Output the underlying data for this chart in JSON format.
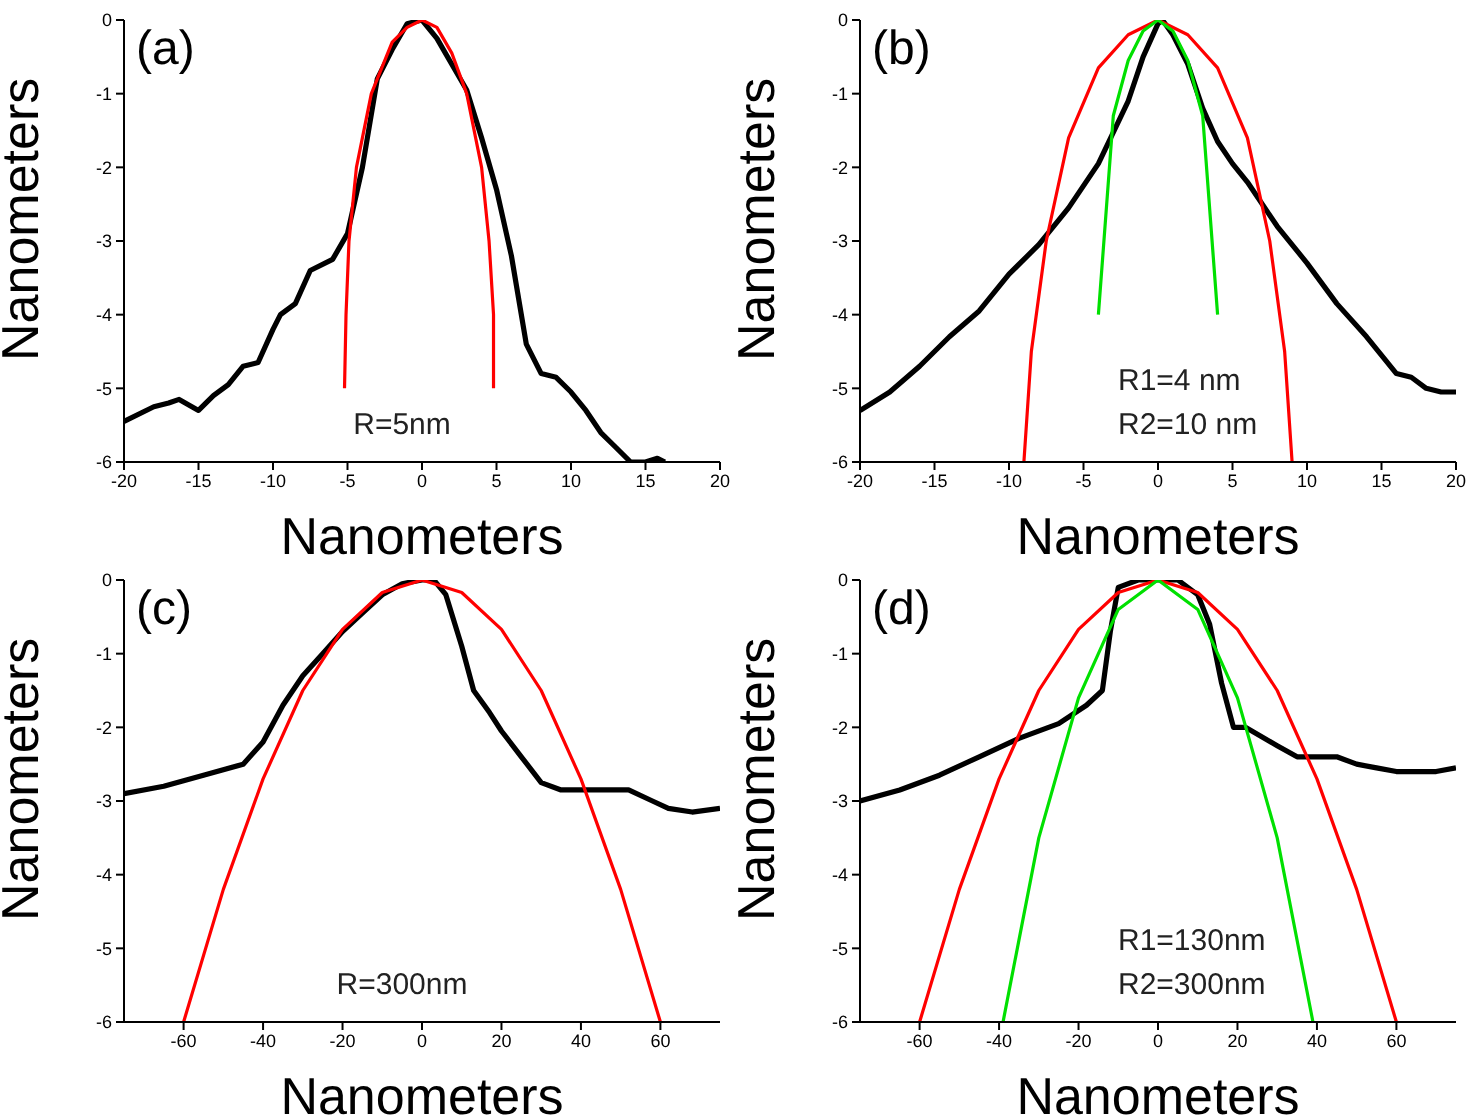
{
  "chart_data": [
    {
      "type": "line",
      "title": "(a)",
      "xlabel": "Nanometers",
      "ylabel": "Nanometers",
      "xlim": [
        -20,
        20
      ],
      "ylim": [
        -6,
        0
      ],
      "xticks": [
        -20,
        -15,
        -10,
        -5,
        0,
        5,
        10,
        15,
        20
      ],
      "yticks": [
        -6,
        -5,
        -4,
        -3,
        -2,
        -1,
        0
      ],
      "grid": false,
      "legend": false,
      "marker": "none",
      "line_style": "solid",
      "annotations": [
        "R=5nm"
      ],
      "series": [
        {
          "color": "#000000",
          "x": [
            -20,
            -18,
            -17,
            -16.3,
            -15,
            -14,
            -13,
            -12,
            -11,
            -10,
            -9.5,
            -8.5,
            -7.5,
            -6,
            -5,
            -4,
            -3,
            -2,
            -1,
            0,
            1,
            2,
            3,
            4,
            5,
            6,
            7,
            8,
            9,
            10,
            11,
            12,
            13,
            14,
            15,
            15.8,
            16.3
          ],
          "values": [
            -5.45,
            -5.25,
            -5.2,
            -5.15,
            -5.3,
            -5.1,
            -4.95,
            -4.7,
            -4.65,
            -4.2,
            -4,
            -3.85,
            -3.4,
            -3.25,
            -2.9,
            -2,
            -0.8,
            -0.4,
            -0.05,
            0,
            -0.25,
            -0.6,
            -0.95,
            -1.6,
            -2.3,
            -3.2,
            -4.4,
            -4.8,
            -4.85,
            -5.05,
            -5.3,
            -5.6,
            -5.8,
            -6,
            -6,
            -5.95,
            -6
          ]
        },
        {
          "color": "#ff0000",
          "x": [
            -5.2,
            -5.1,
            -4.9,
            -4.4,
            -3.4,
            -2,
            -1,
            0,
            1,
            2,
            3,
            4,
            4.5,
            4.8,
            4.8
          ],
          "values": [
            -5,
            -4,
            -3,
            -2,
            -1,
            -0.3,
            -0.1,
            0,
            -0.1,
            -0.45,
            -1,
            -2,
            -3,
            -4,
            -5
          ]
        }
      ]
    },
    {
      "type": "line",
      "title": "(b)",
      "xlabel": "Nanometers",
      "ylabel": "Nanometers",
      "xlim": [
        -20,
        20
      ],
      "ylim": [
        -6,
        0
      ],
      "xticks": [
        -20,
        -15,
        -10,
        -5,
        0,
        5,
        10,
        15,
        20
      ],
      "yticks": [
        -6,
        -5,
        -4,
        -3,
        -2,
        -1,
        0
      ],
      "grid": false,
      "legend": false,
      "marker": "none",
      "line_style": "solid",
      "annotations": [
        "R1=4 nm",
        "R2=10 nm"
      ],
      "series": [
        {
          "color": "#000000",
          "x": [
            -20,
            -18,
            -16,
            -14,
            -12,
            -10,
            -8,
            -6,
            -4,
            -2,
            -1,
            0,
            0.3,
            1,
            2,
            3,
            4,
            5,
            6,
            8,
            10,
            12,
            14,
            16,
            17,
            18,
            19,
            20
          ],
          "values": [
            -5.3,
            -5.05,
            -4.7,
            -4.3,
            -3.95,
            -3.45,
            -3.05,
            -2.55,
            -1.95,
            -1.1,
            -0.5,
            -0.05,
            0,
            -0.2,
            -0.6,
            -1.2,
            -1.65,
            -1.95,
            -2.2,
            -2.8,
            -3.3,
            -3.85,
            -4.3,
            -4.8,
            -4.85,
            -5,
            -5.05,
            -5.05
          ]
        },
        {
          "color": "#ff0000",
          "x": [
            -9,
            -8.5,
            -7.5,
            -6,
            -4,
            -2,
            0,
            2,
            4,
            6,
            7.5,
            8.5,
            9
          ],
          "values": [
            -6,
            -4.5,
            -3,
            -1.6,
            -0.65,
            -0.2,
            0,
            -0.2,
            -0.65,
            -1.6,
            -3,
            -4.5,
            -6
          ]
        },
        {
          "color": "#00e000",
          "x": [
            -4,
            -3,
            -2,
            -1,
            0,
            1,
            2,
            3,
            4
          ],
          "values": [
            -4,
            -1.3,
            -0.55,
            -0.15,
            0,
            -0.15,
            -0.55,
            -1.3,
            -4
          ]
        }
      ]
    },
    {
      "type": "line",
      "title": "(c)",
      "xlabel": "Nanometers",
      "ylabel": "Nanometers",
      "xlim": [
        -75,
        75
      ],
      "ylim": [
        -6,
        0
      ],
      "xticks": [
        -60,
        -40,
        -20,
        0,
        20,
        40,
        60
      ],
      "yticks": [
        -6,
        -5,
        -4,
        -3,
        -2,
        -1,
        0
      ],
      "grid": false,
      "legend": false,
      "marker": "none",
      "line_style": "solid",
      "annotations": [
        "R=300nm"
      ],
      "series": [
        {
          "color": "#000000",
          "x": [
            -75,
            -65,
            -55,
            -45,
            -40,
            -35,
            -30,
            -25,
            -20,
            -15,
            -10,
            -5,
            0,
            3,
            6,
            10,
            13,
            17,
            20,
            25,
            30,
            35,
            45,
            52,
            58,
            62,
            68,
            75
          ],
          "values": [
            -2.9,
            -2.8,
            -2.65,
            -2.5,
            -2.2,
            -1.7,
            -1.3,
            -1,
            -0.7,
            -0.45,
            -0.2,
            -0.05,
            0,
            0,
            -0.2,
            -0.9,
            -1.5,
            -1.8,
            -2.05,
            -2.4,
            -2.75,
            -2.85,
            -2.85,
            -2.85,
            -3,
            -3.1,
            -3.15,
            -3.1
          ]
        },
        {
          "color": "#ff0000",
          "x": [
            -60,
            -50,
            -40,
            -30,
            -20,
            -10,
            0,
            10,
            20,
            30,
            40,
            50,
            60
          ],
          "values": [
            -6,
            -4.2,
            -2.7,
            -1.5,
            -0.67,
            -0.17,
            0,
            -0.17,
            -0.67,
            -1.5,
            -2.7,
            -4.2,
            -6
          ]
        }
      ]
    },
    {
      "type": "line",
      "title": "(d)",
      "xlabel": "Nanometers",
      "ylabel": "Nanometers",
      "xlim": [
        -75,
        75
      ],
      "ylim": [
        -6,
        0
      ],
      "xticks": [
        -60,
        -40,
        -20,
        0,
        20,
        40,
        60
      ],
      "yticks": [
        -6,
        -5,
        -4,
        -3,
        -2,
        -1,
        0
      ],
      "grid": false,
      "legend": false,
      "marker": "none",
      "line_style": "solid",
      "annotations": [
        "R1=130nm",
        "R2=300nm"
      ],
      "series": [
        {
          "color": "#000000",
          "x": [
            -75,
            -65,
            -55,
            -45,
            -35,
            -25,
            -18,
            -14,
            -12,
            -10,
            -5,
            0,
            5,
            10,
            13,
            16,
            19,
            22,
            30,
            35,
            45,
            50,
            55,
            60,
            70,
            75
          ],
          "values": [
            -3,
            -2.85,
            -2.65,
            -2.4,
            -2.15,
            -1.95,
            -1.7,
            -1.5,
            -0.7,
            -0.1,
            0,
            0,
            0,
            -0.2,
            -0.6,
            -1.4,
            -2,
            -2,
            -2.25,
            -2.4,
            -2.4,
            -2.5,
            -2.55,
            -2.6,
            -2.6,
            -2.55
          ]
        },
        {
          "color": "#ff0000",
          "x": [
            -60,
            -50,
            -40,
            -30,
            -20,
            -10,
            0,
            10,
            20,
            30,
            40,
            50,
            60
          ],
          "values": [
            -6,
            -4.2,
            -2.7,
            -1.5,
            -0.67,
            -0.17,
            0,
            -0.17,
            -0.67,
            -1.5,
            -2.7,
            -4.2,
            -6
          ]
        },
        {
          "color": "#00e000",
          "x": [
            -39,
            -30,
            -20,
            -10,
            0,
            10,
            20,
            30,
            39
          ],
          "values": [
            -6,
            -3.5,
            -1.6,
            -0.4,
            0,
            -0.4,
            -1.6,
            -3.5,
            -6
          ]
        }
      ]
    }
  ]
}
